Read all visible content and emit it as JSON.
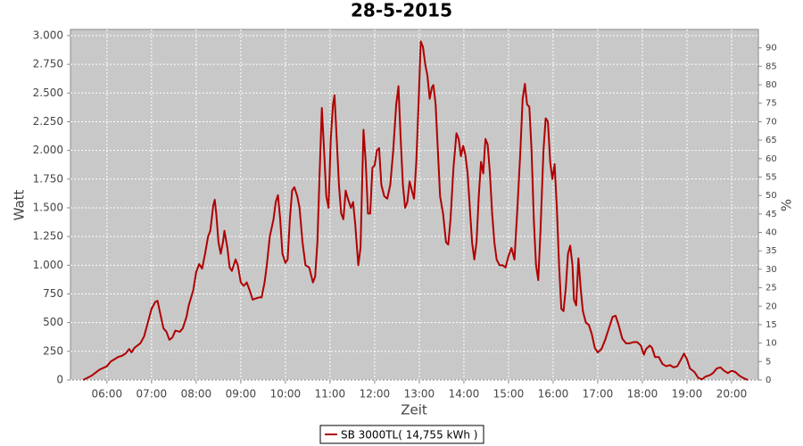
{
  "chart_data": {
    "type": "line",
    "title": "28-5-2015",
    "x_label": "Zeit",
    "y_label": "Watt",
    "y2_label": "%",
    "grid": true,
    "xlim": [
      "05:11",
      "20:36"
    ],
    "xticks": [
      "06:00",
      "07:00",
      "08:00",
      "09:00",
      "10:00",
      "11:00",
      "12:00",
      "13:00",
      "14:00",
      "15:00",
      "16:00",
      "17:00",
      "18:00",
      "19:00",
      "20:00"
    ],
    "ylim": [
      0,
      3054
    ],
    "yticks": [
      0,
      250,
      500,
      750,
      {
        "value": 1000,
        "label": "1.000"
      },
      {
        "value": 1250,
        "label": "1.250"
      },
      {
        "value": 1500,
        "label": "1.500"
      },
      {
        "value": 1750,
        "label": "1.750"
      },
      {
        "value": 2000,
        "label": "2.000"
      },
      {
        "value": 2250,
        "label": "2.250"
      },
      {
        "value": 2500,
        "label": "2.500"
      },
      {
        "value": 2750,
        "label": "2.750"
      },
      {
        "value": 3000,
        "label": "3.000"
      }
    ],
    "y2lim": [
      0,
      95
    ],
    "y2ticks": [
      0,
      5,
      10,
      15,
      20,
      25,
      30,
      35,
      40,
      45,
      50,
      55,
      60,
      65,
      70,
      75,
      80,
      85,
      90
    ],
    "x": [
      "05:28",
      "05:40",
      "05:50",
      "06:00",
      "06:05",
      "06:10",
      "06:15",
      "06:20",
      "06:25",
      "06:30",
      "06:33",
      "06:37",
      "06:45",
      "06:50",
      "06:55",
      "07:00",
      "07:05",
      "07:08",
      "07:12",
      "07:16",
      "07:20",
      "07:24",
      "07:28",
      "07:32",
      "07:38",
      "07:42",
      "07:47",
      "07:50",
      "07:56",
      "08:00",
      "08:04",
      "08:08",
      "08:12",
      "08:16",
      "08:19",
      "08:23",
      "08:25",
      "08:27",
      "08:30",
      "08:33",
      "08:36",
      "08:38",
      "08:42",
      "08:45",
      "08:48",
      "08:53",
      "08:56",
      "09:00",
      "09:04",
      "09:08",
      "09:12",
      "09:16",
      "09:20",
      "09:25",
      "09:28",
      "09:32",
      "09:35",
      "09:39",
      "09:44",
      "09:47",
      "09:50",
      "09:53",
      "09:56",
      "10:00",
      "10:03",
      "10:06",
      "10:09",
      "10:12",
      "10:16",
      "10:19",
      "10:23",
      "10:27",
      "10:32",
      "10:37",
      "10:40",
      "10:43",
      "10:46",
      "10:49",
      "10:52",
      "10:55",
      "10:58",
      "11:01",
      "11:04",
      "11:06",
      "11:09",
      "11:12",
      "11:15",
      "11:18",
      "11:21",
      "11:24",
      "11:28",
      "11:31",
      "11:34",
      "11:38",
      "11:41",
      "11:45",
      "11:48",
      "11:51",
      "11:54",
      "11:57",
      "12:00",
      "12:03",
      "12:06",
      "12:09",
      "12:13",
      "12:17",
      "12:21",
      "12:25",
      "12:29",
      "12:32",
      "12:35",
      "12:38",
      "12:41",
      "12:44",
      "12:47",
      "12:50",
      "12:53",
      "12:56",
      "12:59",
      "13:02",
      "13:05",
      "13:08",
      "13:11",
      "13:14",
      "13:17",
      "13:19",
      "13:22",
      "13:25",
      "13:28",
      "13:32",
      "13:36",
      "13:39",
      "13:42",
      "13:46",
      "13:50",
      "13:53",
      "13:56",
      "13:59",
      "14:02",
      "14:05",
      "14:08",
      "14:11",
      "14:14",
      "14:17",
      "14:20",
      "14:23",
      "14:26",
      "14:29",
      "14:32",
      "14:35",
      "14:38",
      "14:41",
      "14:44",
      "14:48",
      "14:52",
      "14:56",
      "15:00",
      "15:04",
      "15:08",
      "15:12",
      "15:16",
      "15:19",
      "15:22",
      "15:25",
      "15:28",
      "15:31",
      "15:34",
      "15:37",
      "15:40",
      "15:43",
      "15:47",
      "15:50",
      "15:53",
      "15:56",
      "15:59",
      "16:02",
      "16:05",
      "16:08",
      "16:11",
      "16:14",
      "16:17",
      "16:20",
      "16:23",
      "16:26",
      "16:28",
      "16:31",
      "16:34",
      "16:37",
      "16:40",
      "16:44",
      "16:48",
      "16:52",
      "16:56",
      "17:00",
      "17:05",
      "17:10",
      "17:15",
      "17:20",
      "17:24",
      "17:28",
      "17:33",
      "17:38",
      "17:43",
      "17:48",
      "17:53",
      "17:58",
      "18:02",
      "18:05",
      "18:10",
      "18:13",
      "18:17",
      "18:22",
      "18:27",
      "18:32",
      "18:37",
      "18:42",
      "18:47",
      "18:52",
      "18:56",
      "19:00",
      "19:04",
      "19:10",
      "19:15",
      "19:20",
      "19:25",
      "19:30",
      "19:35",
      "19:40",
      "19:45",
      "19:50",
      "19:55",
      "20:00",
      "20:05",
      "20:10",
      "20:15",
      "20:20",
      "20:22"
    ],
    "series": [
      {
        "name": "SB 3000TL( 14,755 kWh )",
        "color": "#b00000",
        "values": [
          0,
          40,
          90,
          120,
          160,
          180,
          200,
          210,
          230,
          270,
          240,
          280,
          320,
          380,
          500,
          620,
          680,
          690,
          570,
          450,
          420,
          350,
          370,
          430,
          420,
          450,
          550,
          650,
          780,
          940,
          1010,
          970,
          1100,
          1250,
          1300,
          1520,
          1570,
          1450,
          1200,
          1100,
          1200,
          1300,
          1150,
          980,
          950,
          1050,
          1000,
          850,
          820,
          850,
          780,
          700,
          710,
          720,
          720,
          850,
          1000,
          1250,
          1400,
          1550,
          1610,
          1400,
          1100,
          1020,
          1050,
          1400,
          1650,
          1680,
          1600,
          1500,
          1200,
          1000,
          980,
          850,
          900,
          1200,
          1800,
          2370,
          2000,
          1600,
          1500,
          2100,
          2400,
          2480,
          2100,
          1700,
          1450,
          1400,
          1650,
          1580,
          1500,
          1550,
          1350,
          1000,
          1150,
          2180,
          1900,
          1450,
          1450,
          1850,
          1870,
          2000,
          2020,
          1700,
          1600,
          1580,
          1700,
          2000,
          2400,
          2560,
          2100,
          1700,
          1500,
          1550,
          1730,
          1650,
          1580,
          1900,
          2400,
          2950,
          2900,
          2750,
          2650,
          2450,
          2550,
          2570,
          2400,
          2000,
          1600,
          1450,
          1200,
          1180,
          1400,
          1850,
          2150,
          2100,
          1950,
          2040,
          1960,
          1800,
          1500,
          1200,
          1050,
          1200,
          1600,
          1900,
          1800,
          2100,
          2050,
          1800,
          1450,
          1200,
          1050,
          1000,
          1000,
          980,
          1080,
          1150,
          1050,
          1500,
          2000,
          2450,
          2580,
          2400,
          2380,
          2000,
          1400,
          1000,
          870,
          1300,
          2000,
          2280,
          2250,
          1900,
          1750,
          1880,
          1500,
          1000,
          620,
          600,
          800,
          1100,
          1170,
          1000,
          700,
          650,
          1060,
          800,
          600,
          500,
          480,
          400,
          280,
          240,
          270,
          350,
          450,
          550,
          560,
          480,
          360,
          320,
          320,
          330,
          330,
          300,
          220,
          270,
          300,
          280,
          200,
          200,
          140,
          120,
          130,
          110,
          120,
          180,
          230,
          180,
          100,
          70,
          20,
          5,
          30,
          40,
          60,
          100,
          110,
          80,
          60,
          80,
          70,
          40,
          20,
          5,
          0
        ]
      }
    ]
  }
}
